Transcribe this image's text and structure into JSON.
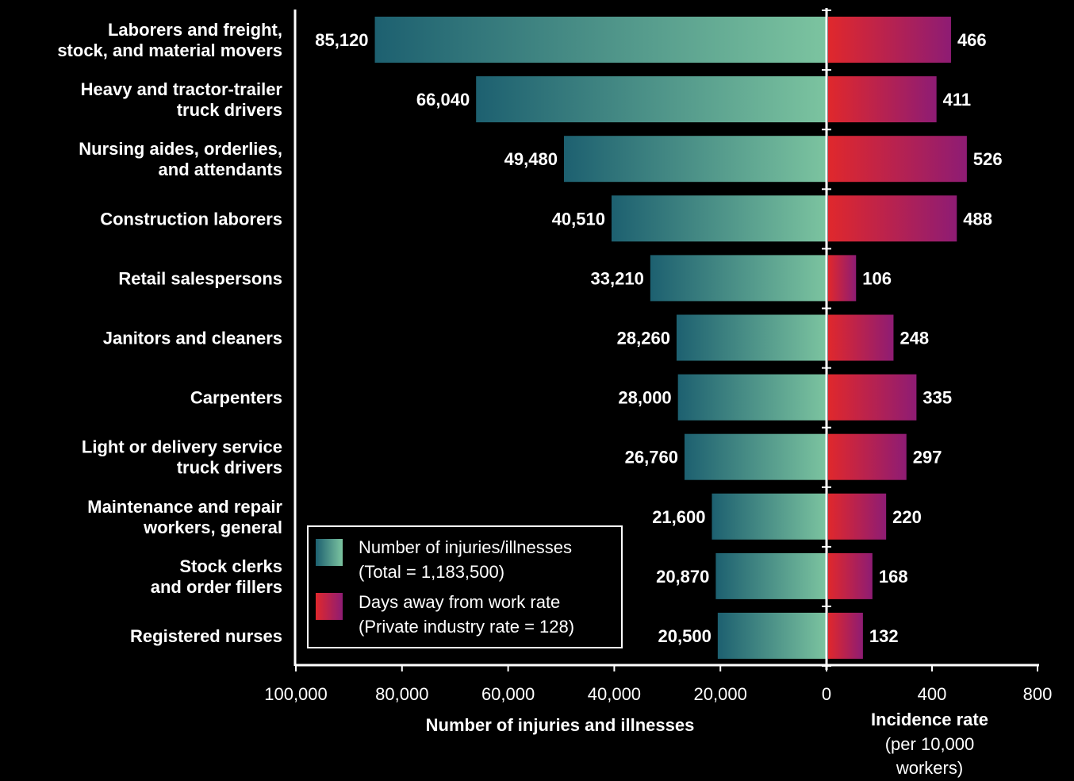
{
  "chart_data": {
    "type": "bar",
    "orientation": "horizontal",
    "categories": [
      [
        "Laborers and freight,",
        "stock, and material movers"
      ],
      [
        "Heavy and tractor-trailer",
        "truck drivers"
      ],
      [
        "Nursing aides, orderlies,",
        "and attendants"
      ],
      [
        "Construction laborers"
      ],
      [
        "Retail salespersons"
      ],
      [
        "Janitors and cleaners"
      ],
      [
        "Carpenters"
      ],
      [
        "Light or delivery service",
        "truck drivers"
      ],
      [
        "Maintenance and repair",
        "workers, general"
      ],
      [
        "Stock clerks",
        "and order fillers"
      ],
      [
        "Registered nurses"
      ]
    ],
    "series": [
      {
        "name": "Number of injuries/illnesses",
        "values": [
          85120,
          66040,
          49480,
          40510,
          33210,
          28260,
          28000,
          26760,
          21600,
          20870,
          20500
        ],
        "labels": [
          "85,120",
          "66,040",
          "49,480",
          "40,510",
          "33,210",
          "28,260",
          "28,000",
          "26,760",
          "21,600",
          "20,870",
          "20,500"
        ],
        "color_dark": "#1d6070",
        "color_light": "#7cc4a0"
      },
      {
        "name": "Days away from work rate",
        "values": [
          466,
          411,
          526,
          488,
          106,
          248,
          335,
          297,
          220,
          168,
          132
        ],
        "labels": [
          "466",
          "411",
          "526",
          "488",
          "106",
          "248",
          "335",
          "297",
          "220",
          "168",
          "132"
        ],
        "color_dark": "#e0282c",
        "color_light": "#8e1c74"
      }
    ],
    "left_axis": {
      "label": "Number of injuries and illnesses",
      "lim": [
        0,
        100000
      ],
      "reversed": true,
      "ticks": [
        100000,
        80000,
        60000,
        40000,
        20000,
        0
      ],
      "tick_labels": [
        "100,000",
        "80,000",
        "60,000",
        "40,000",
        "20,000",
        "0"
      ]
    },
    "right_axis": {
      "label": "Incidence rate",
      "sublabel": [
        "(per 10,000",
        "workers)"
      ],
      "lim": [
        0,
        800
      ],
      "ticks": [
        0,
        400,
        800
      ],
      "tick_labels": [
        "0",
        "400",
        "800"
      ]
    },
    "legend": {
      "placement": "bottom-left",
      "items": [
        [
          "Number of injuries/illnesses",
          "(Total = 1,183,500)"
        ],
        [
          "Days away from work rate",
          "(Private industry rate = 128)"
        ]
      ]
    },
    "grid": false
  }
}
